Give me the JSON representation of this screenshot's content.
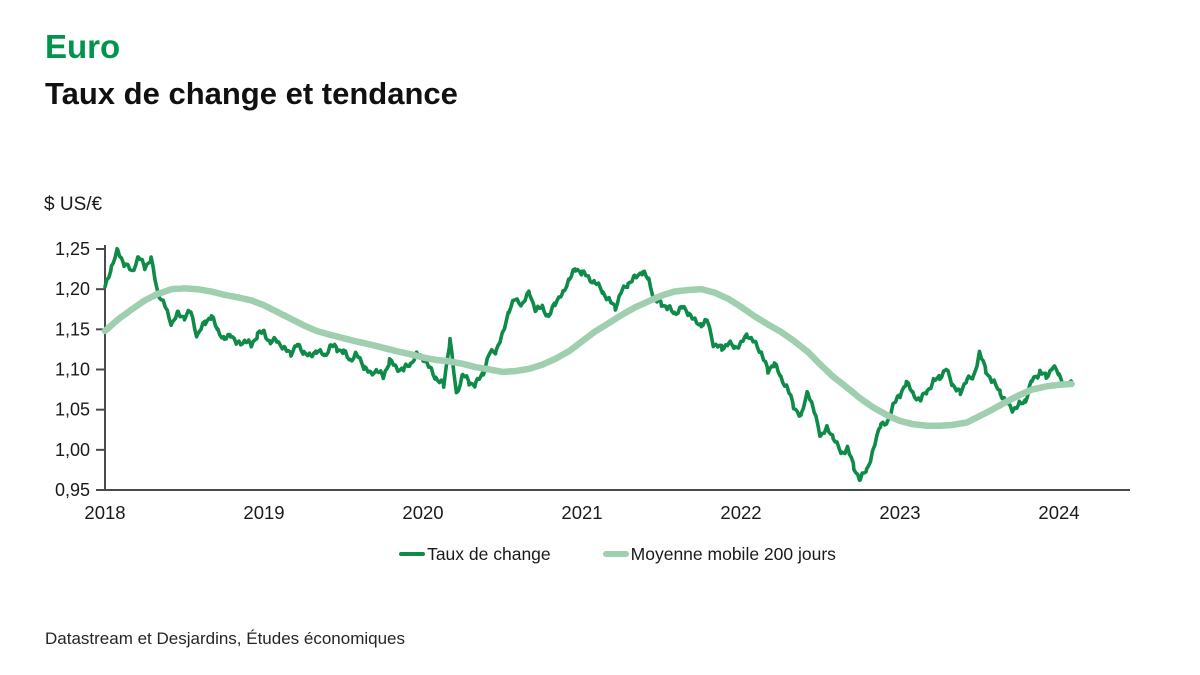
{
  "header": {
    "title": "Euro",
    "subtitle": "Taux de change et tendance"
  },
  "unit_label": "$ US/€",
  "legend": [
    {
      "label": "Taux de change",
      "color": "#0e8b49"
    },
    {
      "label": "Moyenne mobile 200 jours",
      "color": "#9fcfae"
    }
  ],
  "source": "Datastream et Desjardins, Études économiques",
  "colors": {
    "title_green": "#00954a",
    "rate_line": "#0e8b49",
    "ma_line": "#9fcfae",
    "axis": "#4a4a4a",
    "tick_text": "#1a1a1a"
  },
  "chart_data": {
    "type": "line",
    "title": "Euro — Taux de change et tendance",
    "ylabel": "$ US/€",
    "xlim": [
      2018,
      2024.45
    ],
    "ylim": [
      0.95,
      1.25
    ],
    "grid": false,
    "legend_position": "bottom",
    "y_ticks": [
      {
        "v": 0.95,
        "label": "0,95"
      },
      {
        "v": 1.0,
        "label": "1,00"
      },
      {
        "v": 1.05,
        "label": "1,05"
      },
      {
        "v": 1.1,
        "label": "1,10"
      },
      {
        "v": 1.15,
        "label": "1,15"
      },
      {
        "v": 1.2,
        "label": "1,20"
      },
      {
        "v": 1.25,
        "label": "1,25"
      }
    ],
    "x_ticks": [
      {
        "t": 2018,
        "label": "2018"
      },
      {
        "t": 2019,
        "label": "2019"
      },
      {
        "t": 2020,
        "label": "2020"
      },
      {
        "t": 2021,
        "label": "2021"
      },
      {
        "t": 2022,
        "label": "2022"
      },
      {
        "t": 2023,
        "label": "2023"
      },
      {
        "t": 2024,
        "label": "2024"
      }
    ],
    "series": [
      {
        "name": "Taux de change",
        "color": "#0e8b49",
        "width": 3.6,
        "jitter": 0.0045,
        "points": [
          [
            2018.0,
            1.201
          ],
          [
            2018.04,
            1.228
          ],
          [
            2018.08,
            1.248
          ],
          [
            2018.12,
            1.232
          ],
          [
            2018.17,
            1.222
          ],
          [
            2018.21,
            1.24
          ],
          [
            2018.25,
            1.228
          ],
          [
            2018.29,
            1.237
          ],
          [
            2018.33,
            1.198
          ],
          [
            2018.38,
            1.177
          ],
          [
            2018.42,
            1.157
          ],
          [
            2018.46,
            1.17
          ],
          [
            2018.5,
            1.165
          ],
          [
            2018.54,
            1.172
          ],
          [
            2018.58,
            1.141
          ],
          [
            2018.63,
            1.16
          ],
          [
            2018.67,
            1.165
          ],
          [
            2018.71,
            1.15
          ],
          [
            2018.75,
            1.136
          ],
          [
            2018.79,
            1.145
          ],
          [
            2018.83,
            1.131
          ],
          [
            2018.88,
            1.136
          ],
          [
            2018.92,
            1.13
          ],
          [
            2018.96,
            1.144
          ],
          [
            2019.0,
            1.147
          ],
          [
            2019.04,
            1.133
          ],
          [
            2019.08,
            1.137
          ],
          [
            2019.13,
            1.125
          ],
          [
            2019.17,
            1.121
          ],
          [
            2019.21,
            1.13
          ],
          [
            2019.25,
            1.122
          ],
          [
            2019.29,
            1.116
          ],
          [
            2019.33,
            1.124
          ],
          [
            2019.38,
            1.117
          ],
          [
            2019.42,
            1.13
          ],
          [
            2019.46,
            1.126
          ],
          [
            2019.5,
            1.122
          ],
          [
            2019.54,
            1.112
          ],
          [
            2019.58,
            1.119
          ],
          [
            2019.63,
            1.104
          ],
          [
            2019.67,
            1.094
          ],
          [
            2019.71,
            1.1
          ],
          [
            2019.75,
            1.09
          ],
          [
            2019.79,
            1.112
          ],
          [
            2019.83,
            1.102
          ],
          [
            2019.88,
            1.1
          ],
          [
            2019.92,
            1.107
          ],
          [
            2019.96,
            1.119
          ],
          [
            2020.0,
            1.115
          ],
          [
            2020.04,
            1.102
          ],
          [
            2020.08,
            1.09
          ],
          [
            2020.13,
            1.08
          ],
          [
            2020.17,
            1.138
          ],
          [
            2020.21,
            1.069
          ],
          [
            2020.25,
            1.094
          ],
          [
            2020.29,
            1.084
          ],
          [
            2020.33,
            1.081
          ],
          [
            2020.38,
            1.097
          ],
          [
            2020.42,
            1.12
          ],
          [
            2020.46,
            1.124
          ],
          [
            2020.5,
            1.143
          ],
          [
            2020.54,
            1.174
          ],
          [
            2020.58,
            1.187
          ],
          [
            2020.63,
            1.182
          ],
          [
            2020.67,
            1.197
          ],
          [
            2020.71,
            1.172
          ],
          [
            2020.75,
            1.179
          ],
          [
            2020.79,
            1.164
          ],
          [
            2020.83,
            1.184
          ],
          [
            2020.88,
            1.194
          ],
          [
            2020.92,
            1.214
          ],
          [
            2020.96,
            1.224
          ],
          [
            2021.0,
            1.222
          ],
          [
            2021.04,
            1.214
          ],
          [
            2021.08,
            1.209
          ],
          [
            2021.13,
            1.197
          ],
          [
            2021.17,
            1.186
          ],
          [
            2021.21,
            1.178
          ],
          [
            2021.25,
            1.197
          ],
          [
            2021.29,
            1.207
          ],
          [
            2021.33,
            1.214
          ],
          [
            2021.38,
            1.222
          ],
          [
            2021.42,
            1.211
          ],
          [
            2021.46,
            1.186
          ],
          [
            2021.5,
            1.182
          ],
          [
            2021.54,
            1.177
          ],
          [
            2021.58,
            1.17
          ],
          [
            2021.63,
            1.177
          ],
          [
            2021.67,
            1.171
          ],
          [
            2021.71,
            1.16
          ],
          [
            2021.75,
            1.156
          ],
          [
            2021.79,
            1.16
          ],
          [
            2021.83,
            1.13
          ],
          [
            2021.88,
            1.127
          ],
          [
            2021.92,
            1.132
          ],
          [
            2021.96,
            1.128
          ],
          [
            2022.0,
            1.132
          ],
          [
            2022.04,
            1.144
          ],
          [
            2022.08,
            1.134
          ],
          [
            2022.13,
            1.121
          ],
          [
            2022.17,
            1.097
          ],
          [
            2022.21,
            1.109
          ],
          [
            2022.25,
            1.089
          ],
          [
            2022.29,
            1.079
          ],
          [
            2022.33,
            1.054
          ],
          [
            2022.38,
            1.042
          ],
          [
            2022.42,
            1.074
          ],
          [
            2022.46,
            1.047
          ],
          [
            2022.5,
            1.018
          ],
          [
            2022.54,
            1.026
          ],
          [
            2022.58,
            1.017
          ],
          [
            2022.63,
            0.995
          ],
          [
            2022.67,
            1.003
          ],
          [
            2022.71,
            0.978
          ],
          [
            2022.75,
            0.963
          ],
          [
            2022.79,
            0.975
          ],
          [
            2022.83,
            0.998
          ],
          [
            2022.88,
            1.034
          ],
          [
            2022.92,
            1.031
          ],
          [
            2022.96,
            1.06
          ],
          [
            2023.0,
            1.066
          ],
          [
            2023.04,
            1.086
          ],
          [
            2023.08,
            1.069
          ],
          [
            2023.13,
            1.062
          ],
          [
            2023.17,
            1.073
          ],
          [
            2023.21,
            1.085
          ],
          [
            2023.25,
            1.091
          ],
          [
            2023.29,
            1.1
          ],
          [
            2023.33,
            1.082
          ],
          [
            2023.38,
            1.07
          ],
          [
            2023.42,
            1.089
          ],
          [
            2023.46,
            1.088
          ],
          [
            2023.5,
            1.122
          ],
          [
            2023.54,
            1.098
          ],
          [
            2023.58,
            1.086
          ],
          [
            2023.63,
            1.072
          ],
          [
            2023.67,
            1.058
          ],
          [
            2023.71,
            1.05
          ],
          [
            2023.75,
            1.056
          ],
          [
            2023.79,
            1.062
          ],
          [
            2023.83,
            1.086
          ],
          [
            2023.88,
            1.097
          ],
          [
            2023.92,
            1.091
          ],
          [
            2023.96,
            1.103
          ],
          [
            2024.0,
            1.094
          ],
          [
            2024.04,
            1.079
          ],
          [
            2024.08,
            1.084
          ]
        ]
      },
      {
        "name": "Moyenne mobile 200 jours",
        "color": "#9fcfae",
        "width": 6.5,
        "jitter": 0,
        "points": [
          [
            2018.0,
            1.148
          ],
          [
            2018.08,
            1.162
          ],
          [
            2018.17,
            1.175
          ],
          [
            2018.25,
            1.186
          ],
          [
            2018.33,
            1.194
          ],
          [
            2018.42,
            1.2
          ],
          [
            2018.5,
            1.201
          ],
          [
            2018.58,
            1.2
          ],
          [
            2018.67,
            1.197
          ],
          [
            2018.75,
            1.193
          ],
          [
            2018.83,
            1.19
          ],
          [
            2018.92,
            1.186
          ],
          [
            2019.0,
            1.18
          ],
          [
            2019.08,
            1.172
          ],
          [
            2019.17,
            1.163
          ],
          [
            2019.25,
            1.155
          ],
          [
            2019.33,
            1.148
          ],
          [
            2019.42,
            1.143
          ],
          [
            2019.5,
            1.139
          ],
          [
            2019.58,
            1.135
          ],
          [
            2019.67,
            1.131
          ],
          [
            2019.75,
            1.127
          ],
          [
            2019.83,
            1.123
          ],
          [
            2019.92,
            1.119
          ],
          [
            2020.0,
            1.115
          ],
          [
            2020.08,
            1.112
          ],
          [
            2020.17,
            1.11
          ],
          [
            2020.25,
            1.107
          ],
          [
            2020.33,
            1.103
          ],
          [
            2020.42,
            1.1
          ],
          [
            2020.5,
            1.097
          ],
          [
            2020.58,
            1.098
          ],
          [
            2020.67,
            1.101
          ],
          [
            2020.75,
            1.106
          ],
          [
            2020.83,
            1.113
          ],
          [
            2020.92,
            1.123
          ],
          [
            2021.0,
            1.135
          ],
          [
            2021.08,
            1.147
          ],
          [
            2021.17,
            1.158
          ],
          [
            2021.25,
            1.168
          ],
          [
            2021.33,
            1.177
          ],
          [
            2021.42,
            1.185
          ],
          [
            2021.5,
            1.192
          ],
          [
            2021.58,
            1.197
          ],
          [
            2021.67,
            1.199
          ],
          [
            2021.75,
            1.2
          ],
          [
            2021.83,
            1.196
          ],
          [
            2021.92,
            1.188
          ],
          [
            2022.0,
            1.178
          ],
          [
            2022.08,
            1.167
          ],
          [
            2022.17,
            1.156
          ],
          [
            2022.25,
            1.147
          ],
          [
            2022.33,
            1.136
          ],
          [
            2022.42,
            1.122
          ],
          [
            2022.5,
            1.106
          ],
          [
            2022.58,
            1.091
          ],
          [
            2022.67,
            1.077
          ],
          [
            2022.75,
            1.064
          ],
          [
            2022.83,
            1.053
          ],
          [
            2022.92,
            1.043
          ],
          [
            2023.0,
            1.036
          ],
          [
            2023.08,
            1.032
          ],
          [
            2023.17,
            1.03
          ],
          [
            2023.25,
            1.03
          ],
          [
            2023.33,
            1.031
          ],
          [
            2023.42,
            1.034
          ],
          [
            2023.5,
            1.042
          ],
          [
            2023.58,
            1.05
          ],
          [
            2023.67,
            1.06
          ],
          [
            2023.75,
            1.068
          ],
          [
            2023.83,
            1.075
          ],
          [
            2023.92,
            1.079
          ],
          [
            2024.0,
            1.081
          ],
          [
            2024.08,
            1.082
          ]
        ]
      }
    ]
  }
}
